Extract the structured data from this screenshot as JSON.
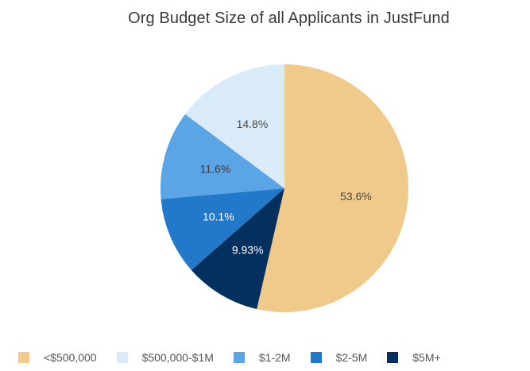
{
  "chart_data": {
    "type": "pie",
    "title": "Org Budget Size of all Applicants in JustFund",
    "slices": [
      {
        "label": "<$500,000",
        "value": 53.6,
        "display": "53.6%",
        "color": "#EFCA8A",
        "text_color": "#4a4a4a"
      },
      {
        "label": "$5M+",
        "value": 9.93,
        "display": "9.93%",
        "color": "#03305E",
        "text_color": "#ffffff"
      },
      {
        "label": "$2-5M",
        "value": 10.1,
        "display": "10.1%",
        "color": "#2279C9",
        "text_color": "#ffffff"
      },
      {
        "label": "$1-2M",
        "value": 11.6,
        "display": "11.6%",
        "color": "#5BA4E5",
        "text_color": "#3a3a3a"
      },
      {
        "label": "$500,000-$1M",
        "value": 14.8,
        "display": "14.8%",
        "color": "#D9EAF9",
        "text_color": "#4a4a4a"
      }
    ],
    "legend_position": "bottom",
    "legend": [
      {
        "label": "<$500,000",
        "color": "#EFCA8A"
      },
      {
        "label": "$500,000-$1M",
        "color": "#D9EAF9"
      },
      {
        "label": "$1-2M",
        "color": "#5BA4E5"
      },
      {
        "label": "$2-5M",
        "color": "#2279C9"
      },
      {
        "label": "$5M+",
        "color": "#03305E"
      }
    ]
  }
}
